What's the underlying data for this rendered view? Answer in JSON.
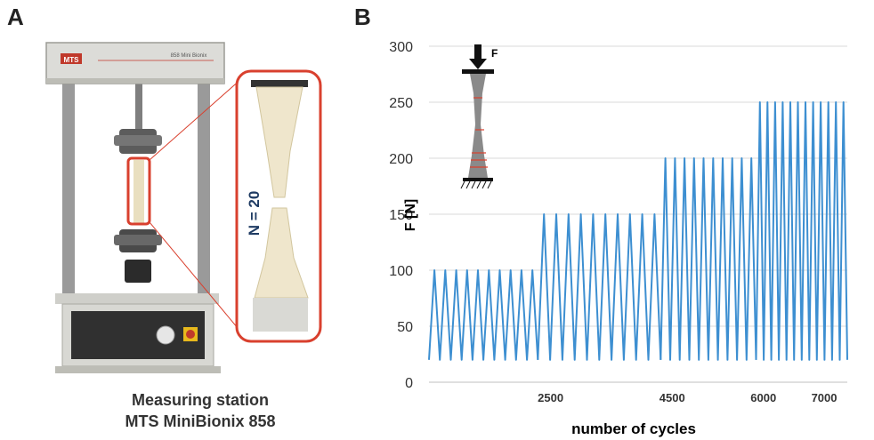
{
  "panel_a": {
    "letter": "A",
    "brand_logo": "MTS",
    "machine_label": "858 Mini Bionix",
    "sample_label": "N = 20",
    "caption_line1": "Measuring station",
    "caption_line2": "MTS MiniBionix 858"
  },
  "panel_b": {
    "letter": "B",
    "force_label": "F"
  },
  "chart_data": {
    "type": "line",
    "title": "",
    "xlabel": "number of cycles",
    "ylabel": "F [N]",
    "ylim": [
      0,
      300
    ],
    "yticks": [
      "0",
      "50",
      "100",
      "150",
      "200",
      "250",
      "300"
    ],
    "xticks": [
      {
        "label": "2500",
        "value": 2500
      },
      {
        "label": "4500",
        "value": 4500
      },
      {
        "label": "6000",
        "value": 6000
      },
      {
        "label": "7000",
        "value": 7000
      }
    ],
    "grid": true,
    "series": [
      {
        "color": "#3d8fd1",
        "segments": [
          {
            "min": 20,
            "max": 100,
            "cycles": 10,
            "x_start": 500,
            "x_end": 2290
          },
          {
            "min": 20,
            "max": 150,
            "cycles": 10,
            "x_start": 2290,
            "x_end": 4310
          },
          {
            "min": 20,
            "max": 200,
            "cycles": 10,
            "x_start": 4310,
            "x_end": 5880
          },
          {
            "min": 20,
            "max": 250,
            "cycles": 12,
            "x_start": 5880,
            "x_end": 7380
          }
        ]
      }
    ]
  },
  "colors": {
    "line": "#3d8fd1",
    "grid": "#d9d9d9",
    "highlight": "#d9402e",
    "frame": "#6a6a6a"
  }
}
